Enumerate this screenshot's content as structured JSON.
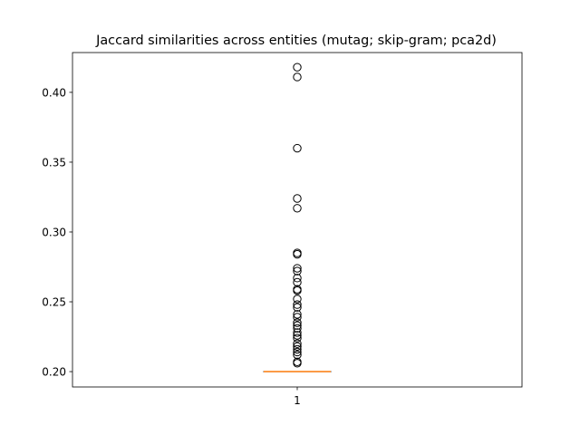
{
  "chart_data": {
    "type": "boxplot",
    "title": "Jaccard similarities across entities (mutag; skip-gram; pca2d)",
    "xlabel": "",
    "ylabel": "",
    "ylim": [
      0.189,
      0.4285
    ],
    "y_ticks": [
      0.2,
      0.25,
      0.3,
      0.35,
      0.4
    ],
    "y_tick_labels": [
      "0.20",
      "0.25",
      "0.30",
      "0.35",
      "0.40"
    ],
    "categories": [
      "1"
    ],
    "box": {
      "q1": 0.2,
      "median": 0.2,
      "q3": 0.2,
      "whisker_low": 0.2,
      "whisker_high": 0.2
    },
    "outliers": [
      0.418,
      0.411,
      0.36,
      0.324,
      0.317,
      0.285,
      0.284,
      0.274,
      0.272,
      0.267,
      0.264,
      0.259,
      0.258,
      0.252,
      0.248,
      0.246,
      0.241,
      0.239,
      0.235,
      0.233,
      0.231,
      0.228,
      0.226,
      0.224,
      0.22,
      0.218,
      0.216,
      0.214,
      0.212,
      0.207,
      0.206
    ],
    "colors": {
      "median": "#ff7f0e",
      "box": "#000000",
      "outlier_edge": "#000000"
    }
  }
}
